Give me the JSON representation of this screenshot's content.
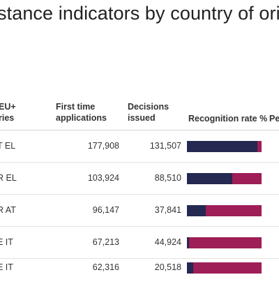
{
  "title": "stance indicators by country of ori",
  "columns": {
    "country": "EU+\nries",
    "country_line1": "EU+",
    "country_line2": "ries",
    "first_time_line1": "First time",
    "first_time_line2": "applications",
    "decisions_line1": "Decisions",
    "decisions_line2": "issued",
    "recognition": "Recognition rate %",
    "pe": "Pe"
  },
  "colors": {
    "positive": "#252850",
    "negative": "#9e1e57"
  },
  "rows": [
    {
      "country": "T EL",
      "first_time": "177,908",
      "decisions": "131,507"
    },
    {
      "country": "R EL",
      "first_time": "103,924",
      "decisions": "88,510"
    },
    {
      "country": "R AT",
      "first_time": "96,147",
      "decisions": "37,841"
    },
    {
      "country": "E IT",
      "first_time": "67,213",
      "decisions": "44,924"
    },
    {
      "country": "E IT",
      "first_time": "62,316",
      "decisions": "20,518"
    }
  ],
  "chart_data": {
    "type": "bar",
    "categories": [
      "T EL",
      "R EL",
      "R AT",
      "E IT",
      "E IT"
    ],
    "series": [
      {
        "values": [
          94,
          61,
          25,
          3,
          8
        ]
      },
      {
        "values": [
          6,
          39,
          75,
          97,
          92
        ]
      }
    ],
    "ylabel": "Recognition rate %",
    "ylim": [
      0,
      100
    ],
    "stacked": true
  }
}
